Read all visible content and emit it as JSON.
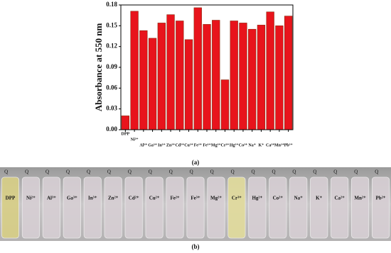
{
  "chart_data": {
    "type": "bar",
    "y_label": "Absorbance at 550 nm",
    "categories": [
      "DPP",
      "Ni²⁺",
      "Al³⁺",
      "Ga³⁺",
      "In³⁺",
      "Zn²⁺",
      "Cd²⁺",
      "Cu²⁺",
      "Fe²⁺",
      "Fe³⁺",
      "Mg²⁺",
      "Cr³⁺",
      "Hg²⁺",
      "Co²⁺",
      "Na⁺",
      "K⁺",
      "Ca²⁺",
      "Mn²⁺",
      "Pb²⁺"
    ],
    "values": [
      0.02,
      0.171,
      0.143,
      0.132,
      0.154,
      0.166,
      0.157,
      0.13,
      0.176,
      0.152,
      0.158,
      0.072,
      0.157,
      0.154,
      0.145,
      0.151,
      0.17,
      0.15,
      0.164
    ],
    "color": "#e8141c",
    "ylim": [
      0,
      0.18
    ],
    "yticks": [
      {
        "value": 0,
        "label": "0.00"
      },
      0.03,
      0.06,
      0.09,
      0.12,
      0.15,
      0.18
    ]
  },
  "captions": [
    "(a)",
    "(b)"
  ],
  "photo": {
    "labels": [
      "DPP",
      "Ni²⁺",
      "Al³⁺",
      "Ga³⁺",
      "In³⁺",
      "Zn²⁺",
      "Cd²⁺",
      "Cu²⁺",
      "Fe²⁺",
      "Fe³⁺",
      "Mg²⁺",
      "Cr³⁺",
      "Hg²⁺",
      "Co²⁺",
      "Na⁺",
      "K⁺",
      "Ca²⁺",
      "Mn²⁺",
      "Pb²⁺"
    ]
  }
}
